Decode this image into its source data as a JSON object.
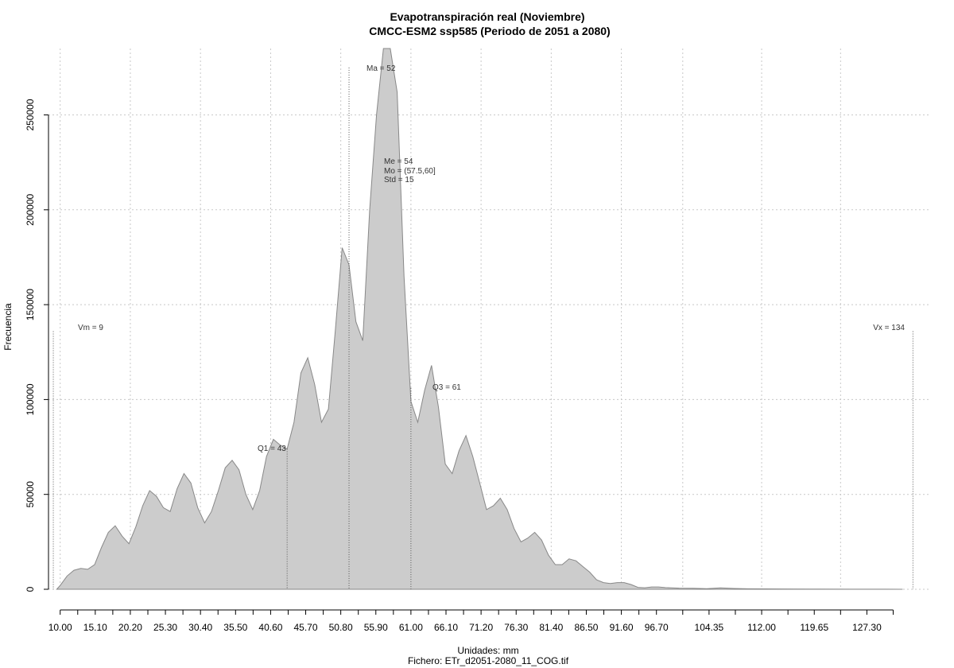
{
  "chart_data": {
    "type": "area",
    "title": "Evapotranspiración real (Noviembre)",
    "subtitle": "CMCC-ESM2 ssp585 (Periodo de 2051 a 2080)",
    "xlabel": "Unidades: mm",
    "ylabel": "Frecuencia",
    "caption": "Fichero: ETr_d2051-2080_11_COG.tif",
    "xlim": [
      8.3,
      136.5
    ],
    "ylim": [
      0,
      285000
    ],
    "x_tick_values": [
      10,
      15.1,
      20.2,
      25.3,
      30.4,
      35.5,
      40.6,
      45.7,
      50.8,
      55.9,
      61,
      66.1,
      71.2,
      76.3,
      81.4,
      86.5,
      91.6,
      96.7,
      104.35,
      112,
      119.65,
      127.3
    ],
    "x_tick_labels": [
      "10.00",
      "15.10",
      "20.20",
      "25.30",
      "30.40",
      "35.50",
      "40.60",
      "45.70",
      "50.80",
      "55.90",
      "61.00",
      "66.10",
      "71.20",
      "76.30",
      "81.40",
      "86.50",
      "91.60",
      "96.70",
      "104.35",
      "112.00",
      "119.65",
      "127.30"
    ],
    "x_minor_ticks": [
      12.55,
      17.65,
      22.75,
      27.85,
      32.95,
      38.05,
      43.15,
      48.25,
      53.35,
      58.45,
      63.55,
      68.65,
      73.75,
      78.85,
      83.95,
      89.05,
      94.15,
      100.525,
      108.175,
      115.825,
      123.475,
      131.125
    ],
    "y_tick_values": [
      0,
      50000,
      100000,
      150000,
      200000,
      250000
    ],
    "y_tick_labels": [
      "0",
      "50000",
      "100000",
      "150000",
      "200000",
      "250000"
    ],
    "grid_x": [
      10,
      20.2,
      30.4,
      40.6,
      50.8,
      61,
      71.2,
      81.4,
      91.6,
      100.525,
      112,
      123.475
    ],
    "grid": true,
    "fill_color": "#cccccc",
    "line_color": "#888888",
    "x": [
      9.5,
      10,
      11,
      12,
      13,
      14,
      15,
      16,
      17,
      18,
      19,
      20,
      21,
      22,
      23,
      24,
      25,
      26,
      27,
      28,
      29,
      30,
      31,
      32,
      33,
      34,
      35,
      36,
      37,
      38,
      39,
      40,
      41,
      42,
      43,
      44,
      45,
      46,
      47,
      48,
      49,
      50,
      51,
      52,
      53,
      54,
      55,
      56,
      57,
      58,
      59,
      60,
      61,
      62,
      63,
      64,
      65,
      66,
      67,
      68,
      69,
      70,
      71,
      72,
      73,
      74,
      75,
      76,
      77,
      78,
      79,
      80,
      81,
      82,
      83,
      84,
      85,
      86,
      87,
      88,
      89,
      90,
      91,
      92,
      93,
      94,
      95,
      96,
      97,
      98,
      100,
      102,
      104,
      106,
      108,
      110,
      115,
      120,
      125,
      130,
      132.5
    ],
    "y": [
      0,
      2000,
      7000,
      10000,
      11000,
      10500,
      13000,
      22000,
      30000,
      33500,
      28000,
      24000,
      33000,
      44000,
      52000,
      49000,
      43000,
      41000,
      53000,
      61000,
      56000,
      43000,
      35000,
      41000,
      52000,
      64000,
      68000,
      63000,
      50000,
      42000,
      52000,
      70000,
      79000,
      76000,
      74000,
      88000,
      114000,
      122000,
      108000,
      88000,
      95000,
      136000,
      180000,
      171000,
      141000,
      131000,
      200000,
      250000,
      285000,
      285000,
      262000,
      165000,
      99000,
      88000,
      105000,
      118000,
      96000,
      66000,
      61000,
      73000,
      81000,
      70000,
      56000,
      42000,
      44000,
      48000,
      42000,
      32000,
      25000,
      27000,
      30000,
      26000,
      18000,
      13000,
      13000,
      16000,
      15000,
      12000,
      9000,
      5000,
      3500,
      3000,
      3500,
      3500,
      2500,
      1000,
      800,
      1200,
      1200,
      900,
      600,
      500,
      300,
      700,
      400,
      250,
      150,
      100,
      60,
      30,
      0
    ],
    "annotations": {
      "vm": {
        "x": 9,
        "label": "Vm = 9",
        "height": 136000
      },
      "vx": {
        "x": 134,
        "label": "Vx = 134",
        "height": 136000
      },
      "ma": {
        "x": 52,
        "label": "Ma = 52",
        "height": 275000
      },
      "q1": {
        "x": 43,
        "label": "Q1 = 43",
        "height": 74000
      },
      "q3": {
        "x": 61,
        "label": "Q3 = 61",
        "height": 106000
      },
      "me": {
        "label": "Me = 54"
      },
      "mo": {
        "label": "Mo = (57.5,60]"
      },
      "std": {
        "label": "Std = 15"
      }
    }
  }
}
